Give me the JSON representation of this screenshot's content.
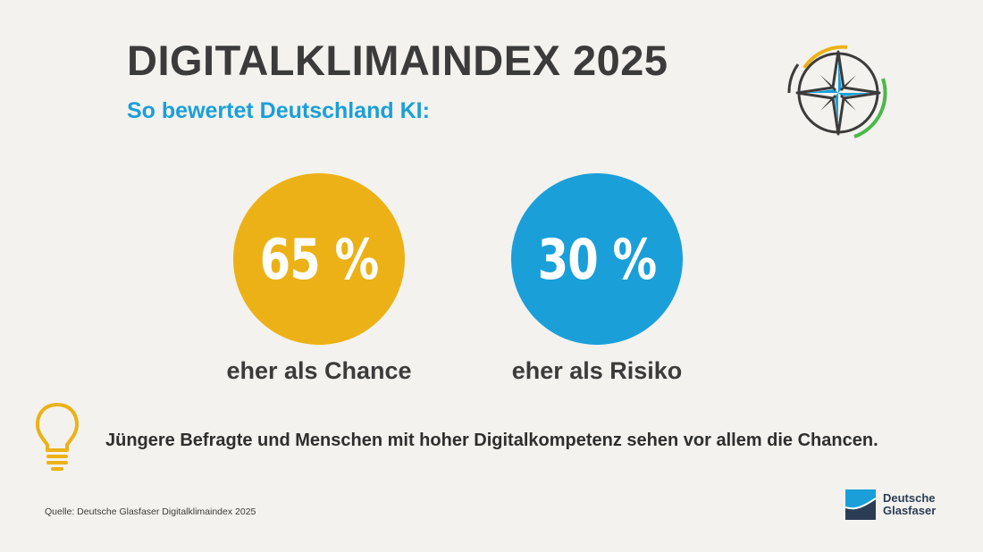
{
  "header": {
    "title": "DIGITALKLIMAINDEX 2025",
    "subtitle": "So bewertet Deutschland KI:"
  },
  "chart_data": {
    "type": "table",
    "unit": "%",
    "categories": [
      "eher als Chance",
      "eher als Risiko"
    ],
    "values": [
      65,
      30
    ],
    "display_values": [
      "65 %",
      "30 %"
    ],
    "colors": [
      "#ecb117",
      "#1a9fd9"
    ],
    "title": "DIGITALKLIMAINDEX 2025",
    "subtitle": "So bewertet Deutschland KI:"
  },
  "note": {
    "icon": "lightbulb-icon",
    "text": "Jüngere Befragte und Menschen mit hoher Digitalkompetenz sehen vor allem die Chancen."
  },
  "footer": {
    "source": "Quelle: Deutsche Glasfaser Digitalklimaindex 2025",
    "logo_line1": "Deutsche",
    "logo_line2": "Glasfaser"
  },
  "colors": {
    "chance": "#ecb117",
    "risiko": "#1a9fd9",
    "text": "#3b3b3b",
    "accent_green": "#4cb848",
    "background": "#f3f2ee"
  },
  "decoration": {
    "compass": "compass-icon"
  }
}
